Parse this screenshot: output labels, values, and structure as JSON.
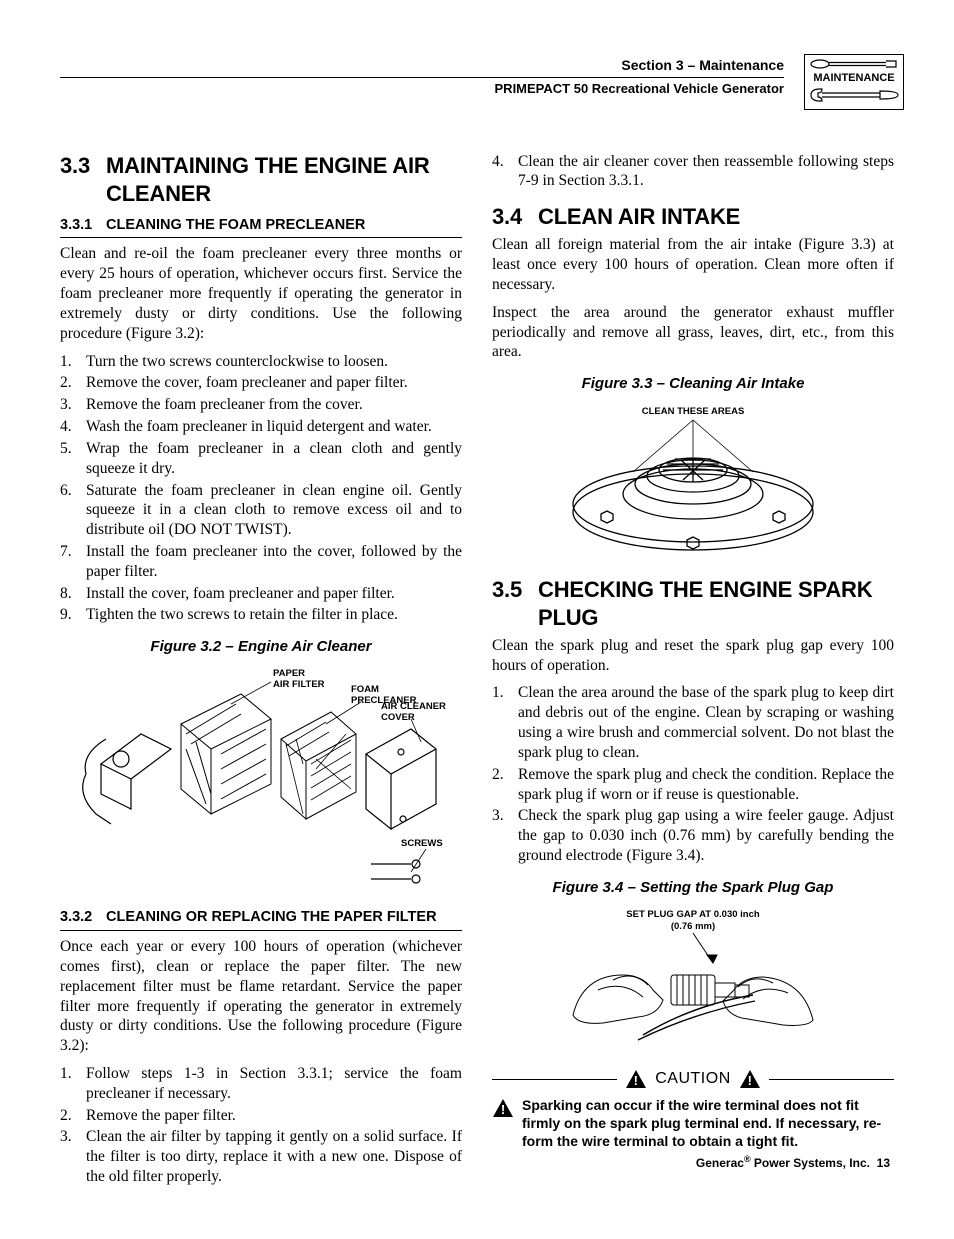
{
  "header": {
    "section": "Section 3 – Maintenance",
    "product": "PRIMEPACT 50 Recreational Vehicle Generator",
    "icon_label": "MAINTENANCE"
  },
  "col_left": {
    "h33_num": "3.3",
    "h33_title": "MAINTAINING THE ENGINE AIR CLEANER",
    "h331_num": "3.3.1",
    "h331_title": "CLEANING THE FOAM PRECLEANER",
    "p331": "Clean and re-oil the foam precleaner every three months or every 25 hours of operation, whichever occurs first. Service the foam precleaner more frequently if operating the generator in extremely dusty or dirty conditions. Use the following procedure (Figure 3.2):",
    "list331": [
      "Turn the two screws counterclockwise to loosen.",
      "Remove the cover, foam precleaner and paper filter.",
      "Remove the foam precleaner from the cover.",
      "Wash the foam precleaner in liquid detergent and water.",
      "Wrap the foam precleaner in a clean cloth and gently squeeze it dry.",
      "Saturate the foam precleaner in clean engine oil. Gently squeeze it in a clean cloth to remove excess oil and to distribute oil (DO NOT TWIST).",
      "Install the foam precleaner into the cover, followed by the paper filter.",
      "Install the cover, foam precleaner and paper filter.",
      "Tighten the two screws to retain the filter in place."
    ],
    "fig32_cap": "Figure 3.2 – Engine Air Cleaner",
    "fig32_labels": {
      "paper": "PAPER\nAIR FILTER",
      "foam": "FOAM\nPRECLEANER",
      "cover": "AIR CLEANER\nCOVER",
      "screws": "SCREWS"
    },
    "h332_num": "3.3.2",
    "h332_title": "CLEANING OR REPLACING THE PAPER FILTER",
    "p332": "Once each year or every 100 hours of operation (whichever comes first), clean or replace the paper filter. The new replacement filter must be flame retardant. Service the paper filter more frequently if operating the generator in extremely dusty or dirty conditions. Use the following procedure (Figure 3.2):",
    "list332": [
      "Follow steps 1-3 in Section 3.3.1; service the foam precleaner if necessary.",
      "Remove the paper filter.",
      "Clean the air filter by tapping it gently on a solid surface. If the filter is too dirty, replace it with a new one. Dispose of the old filter properly."
    ]
  },
  "col_right": {
    "list_cont": [
      "Clean the air cleaner cover then reassemble following steps 7-9 in Section 3.3.1."
    ],
    "h34_num": "3.4",
    "h34_title": "CLEAN AIR INTAKE",
    "p34a": "Clean all foreign material from the air intake (Figure 3.3) at least once every 100 hours of operation. Clean more often if necessary.",
    "p34b": "Inspect the area around the generator exhaust muffler periodically and remove all grass, leaves, dirt, etc., from this area.",
    "fig33_cap": "Figure 3.3 – Cleaning Air Intake",
    "fig33_label": "CLEAN THESE AREAS",
    "h35_num": "3.5",
    "h35_title": "CHECKING THE ENGINE SPARK PLUG",
    "p35": "Clean the spark plug and reset the spark plug gap every 100 hours of operation.",
    "list35": [
      "Clean the area around the base of the spark plug to keep dirt and debris out of the engine. Clean by scraping or washing using a wire brush and commercial solvent. Do not blast the spark plug to clean.",
      "Remove the spark plug and check the condition. Replace the spark plug if worn or if reuse is questionable.",
      "Check the spark plug gap using a wire feeler gauge. Adjust the gap to 0.030 inch (0.76 mm) by carefully bending the ground electrode (Figure 3.4)."
    ],
    "fig34_cap": "Figure 3.4 – Setting the Spark Plug Gap",
    "fig34_label": "SET PLUG GAP AT 0.030 inch\n(0.76 mm)",
    "caution_label": "CAUTION",
    "caution_text": "Sparking can occur if the wire terminal does not fit firmly on the spark plug terminal end. If necessary, re-form the wire terminal to obtain a tight fit."
  },
  "footer": "Generac® Power Systems, Inc.  13",
  "colors": {
    "text": "#000000",
    "bg": "#ffffff",
    "rule": "#000000"
  }
}
